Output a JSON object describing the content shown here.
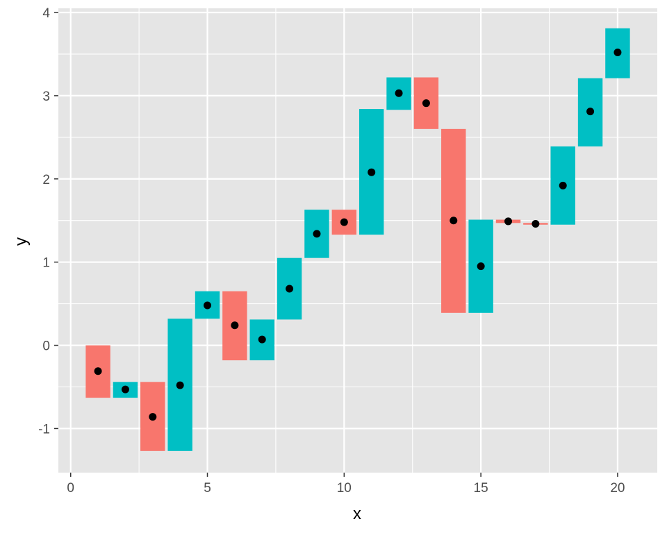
{
  "chart_data": {
    "type": "waterfall",
    "xlabel": "x",
    "ylabel": "y",
    "xlim": [
      -0.45,
      21.45
    ],
    "ylim": [
      -1.53,
      4.05
    ],
    "x_ticks": [
      0,
      5,
      10,
      15,
      20
    ],
    "y_ticks": [
      -1,
      0,
      1,
      2,
      3,
      4
    ],
    "grid": true,
    "colors": {
      "panel_background": "#e5e5e5",
      "grid": "#ffffff",
      "decrease": "#f8766d",
      "increase": "#00bfc4",
      "point": "#000000",
      "axis_text": "#4d4d4d"
    },
    "bars": [
      {
        "x": 1,
        "ymin": -0.63,
        "ymax": 0.0,
        "direction": "decrease"
      },
      {
        "x": 2,
        "ymin": -0.63,
        "ymax": -0.44,
        "direction": "increase"
      },
      {
        "x": 3,
        "ymin": -1.27,
        "ymax": -0.44,
        "direction": "decrease"
      },
      {
        "x": 4,
        "ymin": -1.27,
        "ymax": 0.32,
        "direction": "increase"
      },
      {
        "x": 5,
        "ymin": 0.32,
        "ymax": 0.65,
        "direction": "increase"
      },
      {
        "x": 6,
        "ymin": -0.18,
        "ymax": 0.65,
        "direction": "decrease"
      },
      {
        "x": 7,
        "ymin": -0.18,
        "ymax": 0.31,
        "direction": "increase"
      },
      {
        "x": 8,
        "ymin": 0.31,
        "ymax": 1.05,
        "direction": "increase"
      },
      {
        "x": 9,
        "ymin": 1.05,
        "ymax": 1.63,
        "direction": "increase"
      },
      {
        "x": 10,
        "ymin": 1.33,
        "ymax": 1.63,
        "direction": "decrease"
      },
      {
        "x": 11,
        "ymin": 1.33,
        "ymax": 2.84,
        "direction": "increase"
      },
      {
        "x": 12,
        "ymin": 2.83,
        "ymax": 3.22,
        "direction": "increase"
      },
      {
        "x": 13,
        "ymin": 2.6,
        "ymax": 3.22,
        "direction": "decrease"
      },
      {
        "x": 14,
        "ymin": 0.39,
        "ymax": 2.6,
        "direction": "decrease"
      },
      {
        "x": 15,
        "ymin": 0.39,
        "ymax": 1.51,
        "direction": "increase"
      },
      {
        "x": 16,
        "ymin": 1.47,
        "ymax": 1.51,
        "direction": "decrease"
      },
      {
        "x": 17,
        "ymin": 1.45,
        "ymax": 1.47,
        "direction": "decrease"
      },
      {
        "x": 18,
        "ymin": 1.45,
        "ymax": 2.39,
        "direction": "increase"
      },
      {
        "x": 19,
        "ymin": 2.39,
        "ymax": 3.21,
        "direction": "increase"
      },
      {
        "x": 20,
        "ymin": 3.21,
        "ymax": 3.81,
        "direction": "increase"
      }
    ],
    "points": [
      {
        "x": 1,
        "y": -0.31
      },
      {
        "x": 2,
        "y": -0.53
      },
      {
        "x": 3,
        "y": -0.86
      },
      {
        "x": 4,
        "y": -0.48
      },
      {
        "x": 5,
        "y": 0.48
      },
      {
        "x": 6,
        "y": 0.24
      },
      {
        "x": 7,
        "y": 0.07
      },
      {
        "x": 8,
        "y": 0.68
      },
      {
        "x": 9,
        "y": 1.34
      },
      {
        "x": 10,
        "y": 1.48
      },
      {
        "x": 11,
        "y": 2.08
      },
      {
        "x": 12,
        "y": 3.03
      },
      {
        "x": 13,
        "y": 2.91
      },
      {
        "x": 14,
        "y": 1.5
      },
      {
        "x": 15,
        "y": 0.95
      },
      {
        "x": 16,
        "y": 1.49
      },
      {
        "x": 17,
        "y": 1.46
      },
      {
        "x": 18,
        "y": 1.92
      },
      {
        "x": 19,
        "y": 2.81
      },
      {
        "x": 20,
        "y": 3.52
      }
    ]
  }
}
